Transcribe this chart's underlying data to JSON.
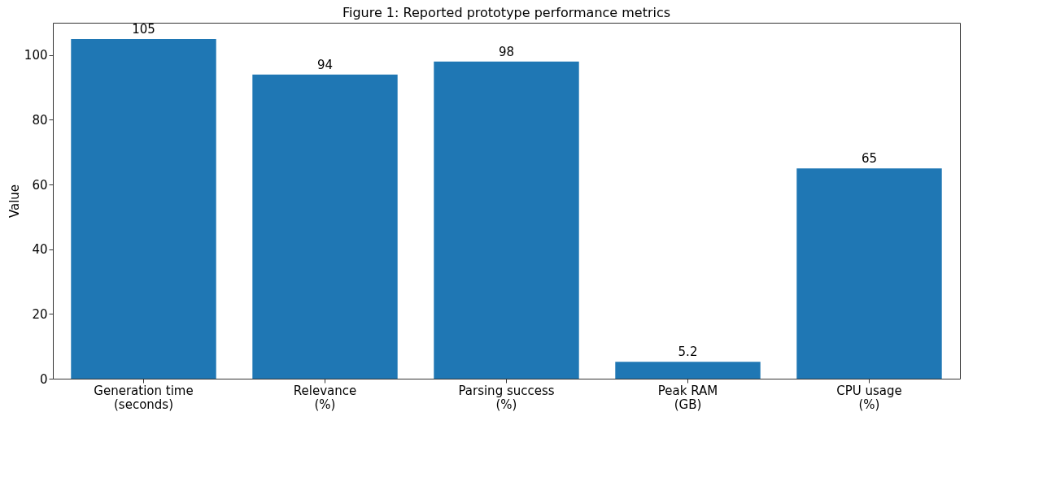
{
  "chart_data": {
    "type": "bar",
    "title": "Figure 1: Reported prototype performance metrics",
    "ylabel": "Value",
    "categories": [
      "Generation time\n(seconds)",
      "Relevance\n(%)",
      "Parsing success\n(%)",
      "Peak RAM\n(GB)",
      "CPU usage\n(%)"
    ],
    "values": [
      105,
      94,
      98,
      5.2,
      65
    ],
    "color": "#1f77b4",
    "data_labels": true,
    "ylim": [
      0,
      110
    ],
    "yticks": [
      0,
      20,
      40,
      60,
      80,
      100
    ],
    "grid": false
  }
}
